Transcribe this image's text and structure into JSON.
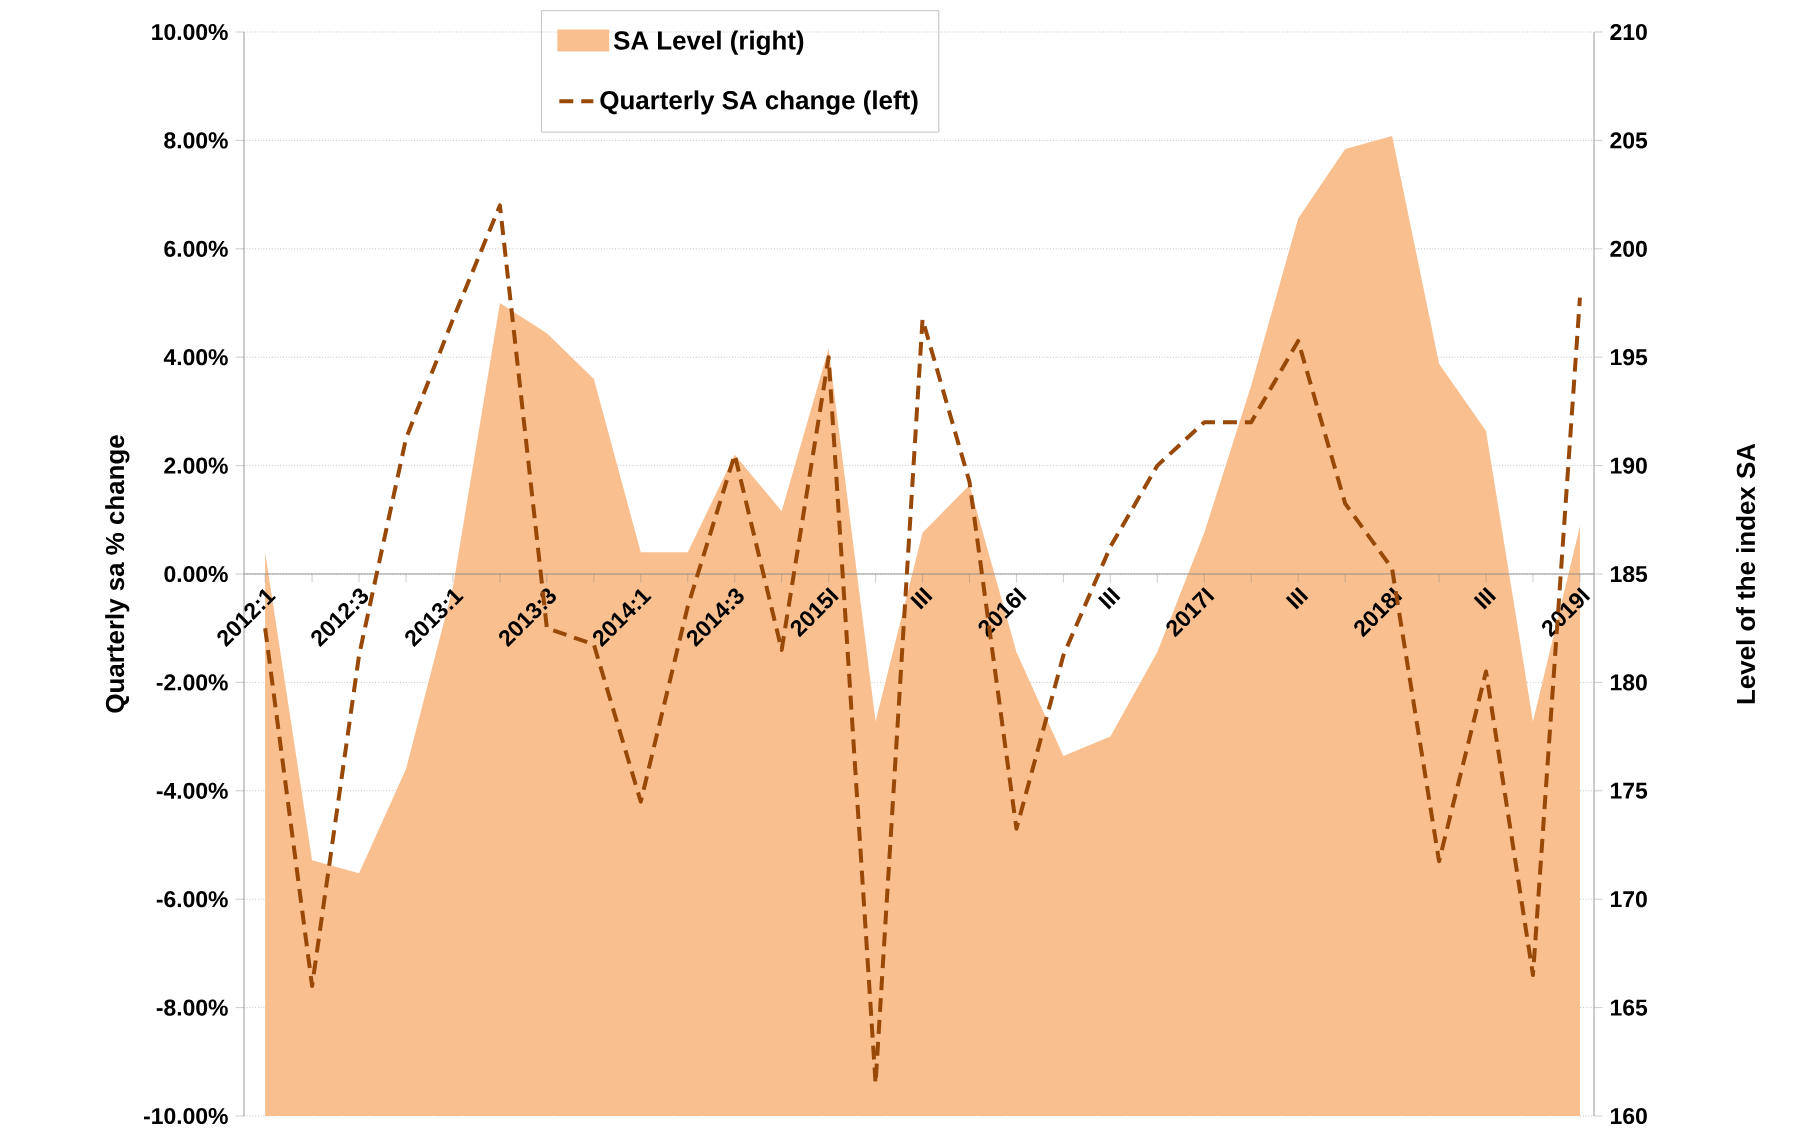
{
  "chart_data": {
    "type": "line",
    "ylabel": "Quarterly sa % change",
    "y2label": "Level of the index SA",
    "categories": [
      "2012:1",
      null,
      "2012:3",
      null,
      "2013:1",
      null,
      "2013:3",
      null,
      "2014:1",
      null,
      "2014:3",
      null,
      "2015I",
      null,
      "III",
      null,
      "2016I",
      null,
      "III",
      null,
      "2017I",
      null,
      "III",
      null,
      "2018I",
      null,
      "III",
      null,
      "2019I"
    ],
    "series": [
      {
        "name": "SA Level (right)",
        "type": "area",
        "axis": "y2",
        "color": "#f9bf8f",
        "values": [
          186.0,
          171.8,
          171.2,
          176.0,
          184.4,
          197.5,
          196.1,
          194.0,
          186.0,
          186.0,
          190.5,
          187.9,
          195.4,
          178.2,
          186.9,
          189.1,
          181.4,
          176.6,
          177.5,
          181.4,
          186.9,
          193.7,
          201.4,
          204.6,
          205.2,
          194.7,
          191.6,
          178.2,
          187.2
        ]
      },
      {
        "name": "Quarterly SA change (left)",
        "type": "line",
        "line_style": "dashed",
        "color": "#984807",
        "values": [
          -1.0,
          -7.6,
          -1.5,
          2.5,
          4.7,
          6.8,
          -1.0,
          -1.3,
          -4.2,
          -0.6,
          2.2,
          -1.4,
          4.0,
          -9.4,
          4.7,
          1.7,
          -4.7,
          -1.5,
          0.5,
          2.0,
          2.8,
          2.8,
          4.3,
          1.3,
          0.1,
          -5.3,
          -1.8,
          -7.4,
          5.1
        ]
      }
    ],
    "ylim": [
      -10,
      10
    ],
    "yticks": [
      {
        "value": -10,
        "label": "-10.00%"
      },
      {
        "value": -8,
        "label": "-8.00%"
      },
      {
        "value": -6,
        "label": "-6.00%"
      },
      {
        "value": -4,
        "label": "-4.00%"
      },
      {
        "value": -2,
        "label": "-2.00%"
      },
      {
        "value": 0,
        "label": "0.00%"
      },
      {
        "value": 2,
        "label": "2.00%"
      },
      {
        "value": 4,
        "label": "4.00%"
      },
      {
        "value": 6,
        "label": "6.00%"
      },
      {
        "value": 8,
        "label": "8.00%"
      },
      {
        "value": 10,
        "label": "10.00%"
      }
    ],
    "y2lim": [
      160,
      210
    ],
    "y2ticks": [
      160,
      165,
      170,
      175,
      180,
      185,
      190,
      195,
      200,
      205,
      210
    ],
    "grid": "y",
    "legend": "top"
  }
}
